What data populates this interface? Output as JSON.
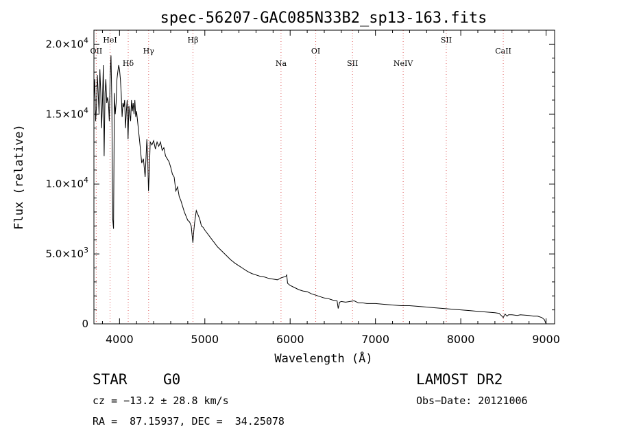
{
  "chart_data": {
    "type": "line",
    "title": "spec-56207-GAC085N33B2_sp13-163.fits",
    "xlabel": "Wavelength (Å)",
    "ylabel": "Flux (relative)",
    "xlim": [
      3700,
      9100
    ],
    "ylim": [
      0,
      21000
    ],
    "xticks": [
      {
        "value": 4000,
        "label": "4000"
      },
      {
        "value": 5000,
        "label": "5000"
      },
      {
        "value": 6000,
        "label": "6000"
      },
      {
        "value": 7000,
        "label": "7000"
      },
      {
        "value": 8000,
        "label": "8000"
      },
      {
        "value": 9000,
        "label": "9000"
      }
    ],
    "yticks": [
      {
        "value": 0,
        "mantissa": "0",
        "exp": ""
      },
      {
        "value": 5000,
        "mantissa": "5.0×10",
        "exp": "3"
      },
      {
        "value": 10000,
        "mantissa": "1.0×10",
        "exp": "4"
      },
      {
        "value": 15000,
        "mantissa": "1.5×10",
        "exp": "4"
      },
      {
        "value": 20000,
        "mantissa": "2.0×10",
        "exp": "4"
      }
    ],
    "grid": false,
    "lines": [
      {
        "name": "OII",
        "wavelength": 3727,
        "label_row": 1
      },
      {
        "name": "HeI",
        "wavelength": 3889,
        "label_row": 0
      },
      {
        "name": "Hδ",
        "wavelength": 4102,
        "label_row": 2
      },
      {
        "name": "Hγ",
        "wavelength": 4341,
        "label_row": 1
      },
      {
        "name": "Hβ",
        "wavelength": 4861,
        "label_row": 0
      },
      {
        "name": "Na",
        "wavelength": 5893,
        "label_row": 2
      },
      {
        "name": "OI",
        "wavelength": 6300,
        "label_row": 1
      },
      {
        "name": "SII",
        "wavelength": 6731,
        "label_row": 2
      },
      {
        "name": "NeIV",
        "wavelength": 7325,
        "label_row": 2
      },
      {
        "name": "SII",
        "wavelength": 7830,
        "label_row": 0
      },
      {
        "name": "CaII",
        "wavelength": 8498,
        "label_row": 1
      }
    ],
    "series": [
      {
        "x": [
          3700,
          3710,
          3720,
          3730,
          3740,
          3750,
          3760,
          3770,
          3780,
          3790,
          3800,
          3810,
          3820,
          3830,
          3840,
          3850,
          3860,
          3870,
          3880,
          3890,
          3900,
          3910,
          3920,
          3930,
          3940,
          3950,
          3960,
          3970,
          3980,
          3990,
          4000,
          4010,
          4020,
          4030,
          4040,
          4050,
          4060,
          4070,
          4080,
          4090,
          4100,
          4110,
          4120,
          4130,
          4140,
          4150,
          4160,
          4170,
          4180,
          4190,
          4200,
          4220,
          4240,
          4260,
          4280,
          4300,
          4320,
          4330,
          4340,
          4350,
          4360,
          4380,
          4400,
          4420,
          4440,
          4460,
          4480,
          4500,
          4520,
          4540,
          4560,
          4580,
          4600,
          4620,
          4640,
          4660,
          4680,
          4700,
          4720,
          4740,
          4760,
          4780,
          4800,
          4820,
          4840,
          4850,
          4860,
          4870,
          4880,
          4900,
          4920,
          4940,
          4960,
          4980,
          5000,
          5050,
          5100,
          5150,
          5200,
          5250,
          5300,
          5350,
          5400,
          5450,
          5500,
          5550,
          5600,
          5650,
          5700,
          5750,
          5800,
          5850,
          5900,
          5950,
          5960,
          5970,
          6000,
          6050,
          6100,
          6150,
          6200,
          6250,
          6300,
          6350,
          6400,
          6450,
          6500,
          6550,
          6563,
          6580,
          6600,
          6650,
          6700,
          6750,
          6800,
          6850,
          6900,
          6950,
          7000,
          7100,
          7200,
          7300,
          7400,
          7500,
          7600,
          7700,
          7800,
          7900,
          8000,
          8100,
          8200,
          8300,
          8400,
          8450,
          8498,
          8520,
          8542,
          8560,
          8600,
          8662,
          8700,
          8800,
          8850,
          8900,
          8950,
          8980,
          9000
        ],
        "y": [
          16000,
          17500,
          14500,
          15500,
          17800,
          16500,
          15000,
          18200,
          16500,
          14000,
          15800,
          18500,
          12000,
          16500,
          17500,
          15800,
          16200,
          15800,
          14500,
          17500,
          19200,
          16000,
          7500,
          6800,
          16500,
          15000,
          15800,
          17500,
          18000,
          18500,
          18200,
          17500,
          16500,
          14800,
          15800,
          15500,
          16000,
          14000,
          15200,
          16000,
          13200,
          15600,
          15000,
          14500,
          16000,
          15200,
          15800,
          15000,
          16000,
          14800,
          15200,
          14000,
          12800,
          11500,
          11800,
          10500,
          13200,
          12000,
          9500,
          11000,
          13000,
          12800,
          13100,
          12500,
          13000,
          12700,
          13000,
          12400,
          12600,
          12000,
          11800,
          11600,
          11200,
          10700,
          10500,
          9500,
          9800,
          9100,
          8800,
          8400,
          8000,
          7700,
          7400,
          7300,
          7000,
          6400,
          5800,
          6600,
          7200,
          8100,
          7800,
          7500,
          7000,
          6900,
          6700,
          6300,
          5900,
          5500,
          5200,
          4900,
          4600,
          4350,
          4150,
          3950,
          3750,
          3600,
          3500,
          3400,
          3350,
          3250,
          3200,
          3150,
          3300,
          3400,
          3500,
          2900,
          2750,
          2600,
          2450,
          2350,
          2300,
          2150,
          2050,
          1950,
          1850,
          1800,
          1700,
          1650,
          1100,
          1550,
          1600,
          1550,
          1600,
          1650,
          1500,
          1500,
          1450,
          1450,
          1450,
          1400,
          1350,
          1300,
          1300,
          1250,
          1200,
          1150,
          1100,
          1050,
          1000,
          950,
          900,
          850,
          800,
          750,
          450,
          700,
          550,
          650,
          650,
          600,
          650,
          600,
          550,
          550,
          450,
          300,
          0
        ]
      }
    ]
  },
  "footer": {
    "object_type": "STAR",
    "subclass": "G0",
    "survey": "LAMOST DR2",
    "cz": "cz = −13.2 ± 28.8 km/s",
    "obs_date": "Obs−Date: 20121006",
    "coords": "RA =  87.15937, DEC =  34.25078"
  }
}
